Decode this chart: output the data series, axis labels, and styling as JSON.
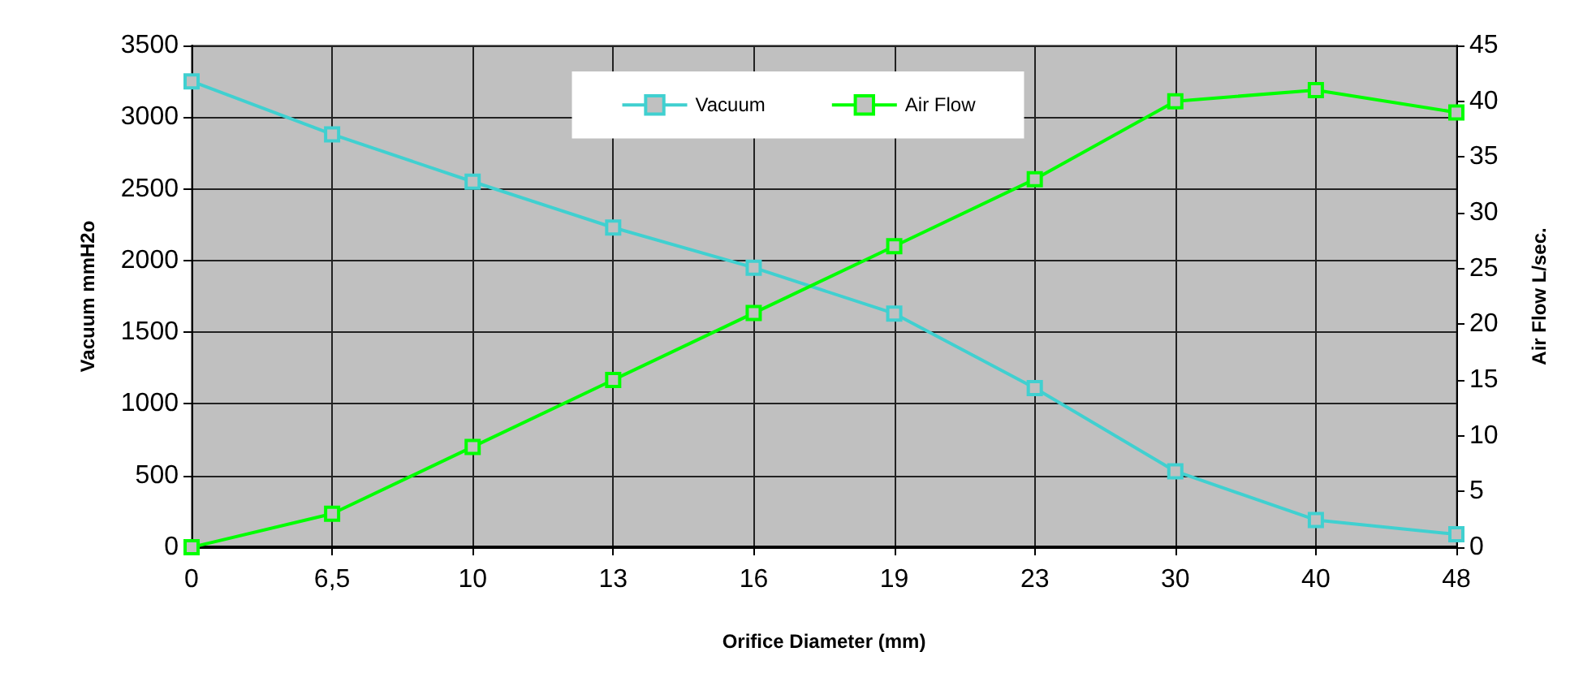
{
  "chart_data": {
    "type": "line",
    "categories": [
      "0",
      "6,5",
      "10",
      "13",
      "16",
      "19",
      "23",
      "30",
      "40",
      "48"
    ],
    "series": [
      {
        "name": "Vacuum",
        "color": "#40d0d0",
        "values": [
          3250,
          2880,
          2550,
          2230,
          1950,
          1630,
          1110,
          530,
          190,
          90
        ]
      },
      {
        "name": "Air Flow",
        "color": "#00ff00",
        "axis": "y2",
        "values": [
          0,
          3,
          9,
          15,
          21,
          27,
          33,
          40,
          41,
          39
        ]
      }
    ],
    "xlabel": "Orifice Diameter (mm)",
    "ylabel": "Vacuum mmH2o",
    "y2label": "Air Flow L/sec.",
    "ylim": [
      0,
      3500
    ],
    "yticks": [
      0,
      500,
      1000,
      1500,
      2000,
      2500,
      3000,
      3500
    ],
    "y2lim": [
      0,
      45
    ],
    "y2ticks": [
      0,
      5,
      10,
      15,
      20,
      25,
      30,
      35,
      40,
      45
    ],
    "grid": true,
    "legend": "top",
    "marker": "square",
    "line_style": "solid"
  }
}
